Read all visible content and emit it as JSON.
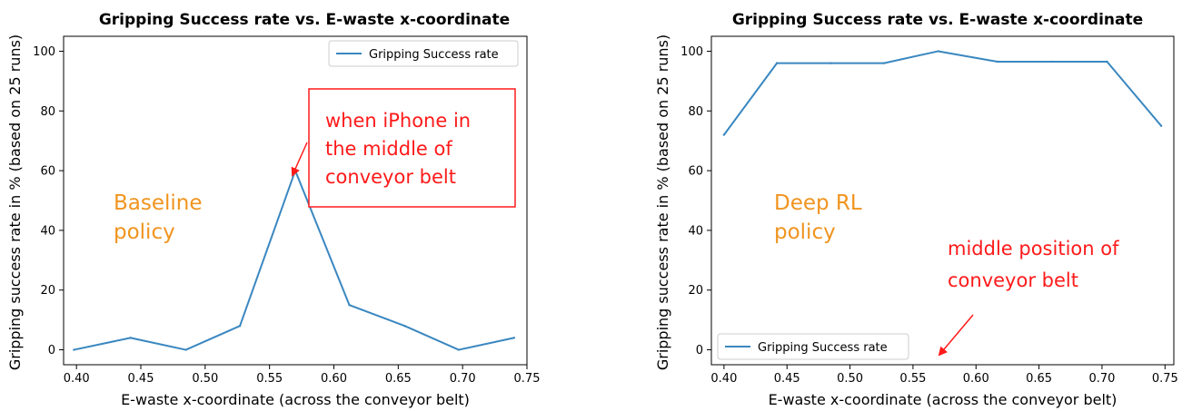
{
  "colors": {
    "line": "#3a87c0",
    "axis": "#000000",
    "annotation_orange": "#f0941e",
    "annotation_red": "#ff1a1a"
  },
  "chart_data": [
    {
      "type": "line",
      "title": "Gripping Success rate vs. E-waste x-coordinate",
      "xlabel": "E-waste x-coordinate (across the conveyor belt)",
      "ylabel": "Gripping success rate in % (based on 25 runs)",
      "xlim": [
        0.39,
        0.75
      ],
      "ylim": [
        -5,
        105
      ],
      "xticks": [
        "0.40",
        "0.45",
        "0.50",
        "0.55",
        "0.60",
        "0.65",
        "0.70",
        "0.75"
      ],
      "yticks": [
        "0",
        "20",
        "40",
        "60",
        "80",
        "100"
      ],
      "legend": "top-right",
      "series": [
        {
          "name": "Gripping Success rate",
          "x": [
            0.398,
            0.442,
            0.485,
            0.527,
            0.57,
            0.612,
            0.655,
            0.697,
            0.74
          ],
          "y": [
            0,
            4,
            0,
            8,
            60,
            15,
            8,
            0,
            4
          ]
        }
      ],
      "annotations": {
        "policy_line1": "Baseline",
        "policy_line2": "policy",
        "note_line1": "when iPhone in",
        "note_line2": "the middle of",
        "note_line3": "conveyor belt"
      }
    },
    {
      "type": "line",
      "title": "Gripping Success rate vs. E-waste x-coordinate",
      "xlabel": "E-waste x-coordinate (across the conveyor belt)",
      "ylabel": "Gripping success rate in % (based on 25 runs)",
      "xlim": [
        0.39,
        0.757
      ],
      "ylim": [
        -5,
        105
      ],
      "xticks": [
        "0.40",
        "0.45",
        "0.50",
        "0.55",
        "0.60",
        "0.65",
        "0.70",
        "0.75"
      ],
      "yticks": [
        "0",
        "20",
        "40",
        "60",
        "80",
        "100"
      ],
      "legend": "bottom-left",
      "series": [
        {
          "name": "Gripping Success rate",
          "x": [
            0.4,
            0.442,
            0.485,
            0.527,
            0.57,
            0.617,
            0.66,
            0.704,
            0.747
          ],
          "y": [
            72,
            96,
            96,
            96,
            100,
            96.5,
            96.5,
            96.5,
            75
          ]
        }
      ],
      "annotations": {
        "policy_line1": "Deep RL",
        "policy_line2": "policy",
        "note_line1": "middle position of",
        "note_line2": "conveyor belt"
      }
    }
  ]
}
